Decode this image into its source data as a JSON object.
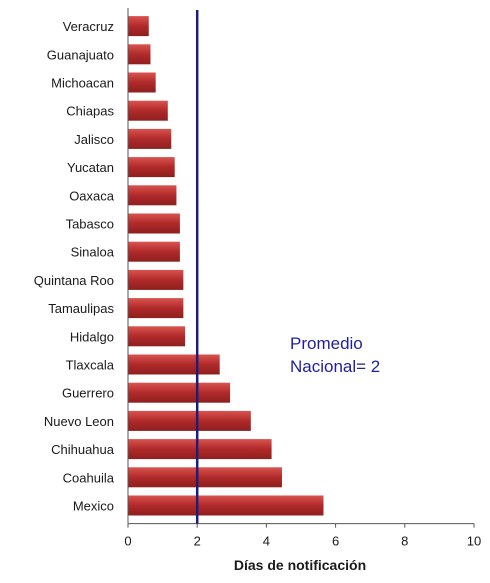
{
  "chart_data": {
    "type": "bar",
    "orientation": "horizontal",
    "categories": [
      "Veracruz",
      "Guanajuato",
      "Michoacan",
      "Chiapas",
      "Jalisco",
      "Yucatan",
      "Oaxaca",
      "Tabasco",
      "Sinaloa",
      "Quintana Roo",
      "Tamaulipas",
      "Hidalgo",
      "Tlaxcala",
      "Guerrero",
      "Nuevo Leon",
      "Chihuahua",
      "Coahuila",
      "Mexico"
    ],
    "values": [
      0.6,
      0.65,
      0.8,
      1.15,
      1.25,
      1.35,
      1.4,
      1.5,
      1.5,
      1.6,
      1.6,
      1.65,
      2.65,
      2.95,
      3.55,
      4.15,
      4.45,
      5.65
    ],
    "xlabel": "Días de notificación",
    "ylabel": "",
    "xlim": [
      0,
      10
    ],
    "xticks": [
      0,
      2,
      4,
      6,
      8,
      10
    ],
    "xtick_labels": [
      "0",
      "2",
      "4",
      "6",
      "8",
      "10"
    ],
    "reference_line": {
      "value": 2,
      "label_lines": [
        "Promedio",
        "Nacional= 2"
      ]
    },
    "grid": false,
    "colors": {
      "bar": "#b02a2a",
      "bar_light": "#d9534f",
      "reference_line": "#1c1c7a",
      "annotation": "#1f1fa0",
      "axis": "#555555"
    }
  }
}
